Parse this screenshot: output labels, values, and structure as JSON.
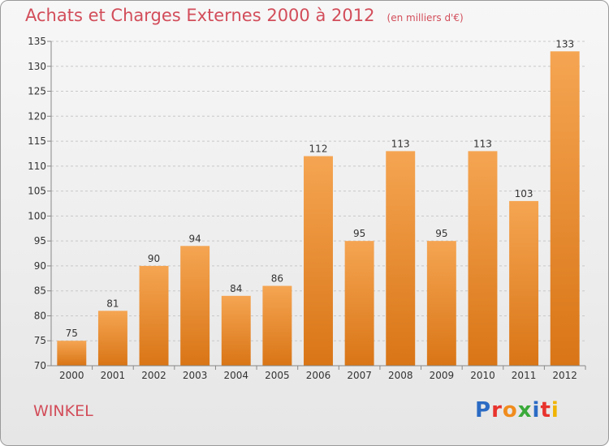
{
  "header": {
    "title": "Achats et Charges Externes 2000 à 2012",
    "unit_note": "(en milliers d'€)"
  },
  "footer": {
    "commune": "WINKEL",
    "brand": "Proxiti"
  },
  "colors": {
    "bar_top": "#f5a552",
    "bar_bottom": "#d97516",
    "title": "#d24d5a",
    "brand_letters": [
      "#2b6bc4",
      "#e8332d",
      "#f08c1d",
      "#3aaa3a",
      "#2b6bc4",
      "#e8332d",
      "#f0b400"
    ]
  },
  "chart_data": {
    "type": "bar",
    "title": "Achats et Charges Externes 2000 à 2012",
    "subtitle": "(en milliers d'€)",
    "categories": [
      "2000",
      "2001",
      "2002",
      "2003",
      "2004",
      "2005",
      "2006",
      "2007",
      "2008",
      "2009",
      "2010",
      "2011",
      "2012"
    ],
    "values": [
      75,
      81,
      90,
      94,
      84,
      86,
      112,
      95,
      113,
      95,
      113,
      103,
      133
    ],
    "ylim": [
      70,
      135
    ],
    "yticks": [
      70,
      75,
      80,
      85,
      90,
      95,
      100,
      105,
      110,
      115,
      120,
      125,
      130,
      135
    ],
    "grid": "horizontal-dashed",
    "data_labels": true
  }
}
